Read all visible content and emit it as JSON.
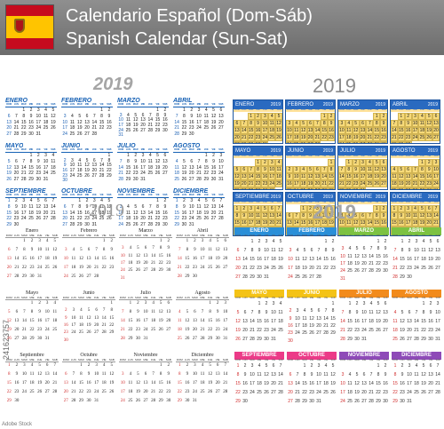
{
  "header": {
    "title_es": "Calendario Español (Dom-Sáb)",
    "title_en": "Spanish Calendar (Sun-Sat)",
    "flag_icon": "spain-flag-icon"
  },
  "year": "2019",
  "day_headers": [
    "DOM",
    "LUN",
    "MAR",
    "MIE",
    "JUE",
    "VIE",
    "SAB"
  ],
  "watermark": "241623757",
  "watermark2": "Adobe Stock",
  "months_upper": [
    "ENERO",
    "FEBRERO",
    "MARZO",
    "ABRIL",
    "MAYO",
    "JUNIO",
    "JULIO",
    "AGOSTO",
    "SEPTIEMBRE",
    "OCTUBRE",
    "NOVIEMBRE",
    "DICIEMBRE"
  ],
  "months_title": [
    "Enero",
    "Febrero",
    "Marzo",
    "Abril",
    "Mayo",
    "Junio",
    "Julio",
    "Agosto",
    "Septiembre",
    "Octubre",
    "Noviembre",
    "Diciembre"
  ],
  "month_start_weekday": [
    2,
    5,
    5,
    1,
    3,
    6,
    1,
    4,
    0,
    2,
    5,
    0
  ],
  "month_days": [
    31,
    28,
    31,
    30,
    31,
    30,
    31,
    31,
    30,
    31,
    30,
    31
  ],
  "q4_colors": [
    "#2a8fd8",
    "#2a8fd8",
    "#7cc242",
    "#7cc242",
    "#f4c316",
    "#f4c316",
    "#f28b1c",
    "#f28b1c",
    "#ec3a88",
    "#ec3a88",
    "#8e4ab8",
    "#8e4ab8"
  ]
}
